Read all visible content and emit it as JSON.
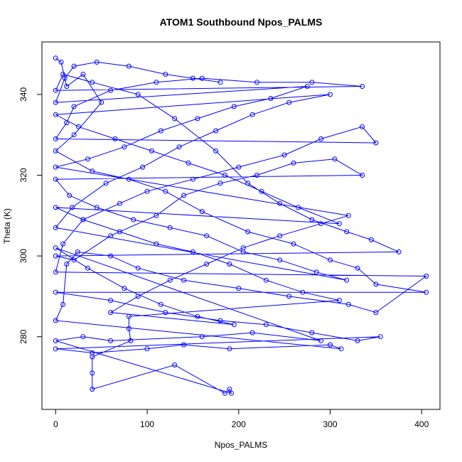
{
  "chart_data": {
    "type": "line",
    "title": "ATOM1 Southbound Npos_PALMS",
    "xlabel": "Npos_PALMS",
    "ylabel": "Theta (K)",
    "xlim": [
      -15,
      420
    ],
    "ylim": [
      262,
      353
    ],
    "x_ticks": [
      0,
      100,
      200,
      300,
      400
    ],
    "y_ticks": [
      280,
      300,
      320,
      340
    ],
    "markers": "open-circle",
    "color": "#0000ff",
    "series": [
      {
        "values": [
          [
            0,
            349
          ],
          [
            6,
            348
          ],
          [
            12,
            342
          ],
          [
            30,
            345
          ],
          [
            50,
            338
          ],
          [
            20,
            330
          ],
          [
            0,
            326
          ],
          [
            40,
            321
          ],
          [
            80,
            319
          ],
          [
            120,
            316
          ],
          [
            160,
            311
          ],
          [
            210,
            306
          ],
          [
            260,
            303
          ],
          [
            300,
            299
          ],
          [
            330,
            297
          ],
          [
            350,
            293
          ],
          [
            405,
            291
          ],
          [
            0,
            291
          ],
          [
            60,
            289
          ],
          [
            120,
            286
          ],
          [
            180,
            284
          ],
          [
            230,
            283
          ],
          [
            280,
            281
          ],
          [
            330,
            279
          ],
          [
            355,
            280
          ],
          [
            0,
            277
          ],
          [
            40,
            276
          ],
          [
            100,
            277
          ],
          [
            140,
            278
          ],
          [
            190,
            277
          ],
          [
            300,
            278
          ],
          [
            312,
            277
          ],
          [
            0,
            284
          ],
          [
            8,
            288
          ],
          [
            12,
            298
          ],
          [
            24,
            301
          ],
          [
            60,
            300
          ],
          [
            90,
            297
          ],
          [
            140,
            294
          ],
          [
            200,
            292
          ],
          [
            255,
            290
          ],
          [
            320,
            288
          ],
          [
            350,
            286
          ],
          [
            405,
            295
          ],
          [
            0,
            296
          ],
          [
            8,
            303
          ],
          [
            30,
            309
          ],
          [
            70,
            313
          ],
          [
            100,
            316
          ],
          [
            150,
            319
          ],
          [
            200,
            322
          ],
          [
            250,
            325
          ],
          [
            290,
            329
          ],
          [
            335,
            332
          ],
          [
            350,
            328
          ],
          [
            0,
            329
          ],
          [
            12,
            333
          ],
          [
            20,
            337
          ],
          [
            60,
            341
          ],
          [
            110,
            343
          ],
          [
            160,
            344
          ],
          [
            220,
            343
          ],
          [
            280,
            343
          ],
          [
            335,
            342
          ],
          [
            0,
            341
          ],
          [
            8,
            345
          ],
          [
            40,
            343
          ],
          [
            90,
            340
          ],
          [
            130,
            334
          ],
          [
            175,
            326
          ],
          [
            210,
            318
          ],
          [
            245,
            313
          ],
          [
            280,
            309
          ],
          [
            318,
            306
          ],
          [
            345,
            304
          ],
          [
            375,
            301
          ],
          [
            0,
            300
          ],
          [
            20,
            299
          ],
          [
            60,
            305
          ],
          [
            110,
            310
          ],
          [
            140,
            315
          ],
          [
            180,
            318
          ],
          [
            220,
            320
          ],
          [
            260,
            323
          ],
          [
            305,
            324
          ],
          [
            335,
            320
          ],
          [
            0,
            319
          ],
          [
            15,
            315
          ],
          [
            45,
            312
          ],
          [
            85,
            309
          ],
          [
            125,
            307
          ],
          [
            165,
            305
          ],
          [
            205,
            301
          ],
          [
            245,
            299
          ],
          [
            285,
            296
          ],
          [
            318,
            294
          ],
          [
            0,
            307
          ],
          [
            18,
            312
          ],
          [
            55,
            318
          ],
          [
            95,
            322
          ],
          [
            135,
            327
          ],
          [
            175,
            331
          ],
          [
            215,
            335
          ],
          [
            255,
            338
          ],
          [
            300,
            340
          ],
          [
            0,
            335
          ],
          [
            25,
            332
          ],
          [
            65,
            329
          ],
          [
            105,
            326
          ],
          [
            145,
            323
          ],
          [
            185,
            320
          ],
          [
            225,
            316
          ],
          [
            265,
            312
          ],
          [
            310,
            308
          ],
          [
            0,
            312
          ],
          [
            30,
            309
          ],
          [
            70,
            306
          ],
          [
            110,
            303
          ],
          [
            150,
            301
          ],
          [
            190,
            298
          ],
          [
            230,
            294
          ],
          [
            270,
            291
          ],
          [
            310,
            289
          ],
          [
            80,
            285
          ],
          [
            80,
            282
          ],
          [
            82,
            279
          ],
          [
            40,
            275
          ],
          [
            40,
            271
          ],
          [
            40,
            267
          ],
          [
            130,
            273
          ],
          [
            185,
            266
          ],
          [
            190,
            267
          ],
          [
            192,
            266
          ],
          [
            0,
            279
          ],
          [
            30,
            280
          ],
          [
            60,
            279
          ],
          [
            160,
            280
          ],
          [
            215,
            281
          ],
          [
            290,
            279
          ],
          [
            0,
            302
          ],
          [
            35,
            297
          ],
          [
            75,
            292
          ],
          [
            115,
            288
          ],
          [
            155,
            285
          ],
          [
            195,
            283
          ],
          [
            60,
            286
          ],
          [
            90,
            290
          ],
          [
            125,
            294
          ],
          [
            165,
            298
          ],
          [
            205,
            302
          ],
          [
            245,
            305
          ],
          [
            290,
            308
          ],
          [
            320,
            310
          ],
          [
            0,
            322
          ],
          [
            35,
            324
          ],
          [
            75,
            327
          ],
          [
            115,
            331
          ],
          [
            155,
            334
          ],
          [
            195,
            337
          ],
          [
            235,
            339
          ],
          [
            275,
            342
          ],
          [
            0,
            338
          ],
          [
            10,
            344
          ],
          [
            20,
            347
          ],
          [
            45,
            348
          ],
          [
            80,
            347
          ],
          [
            120,
            345
          ],
          [
            150,
            344
          ],
          [
            180,
            343
          ]
        ]
      }
    ]
  }
}
